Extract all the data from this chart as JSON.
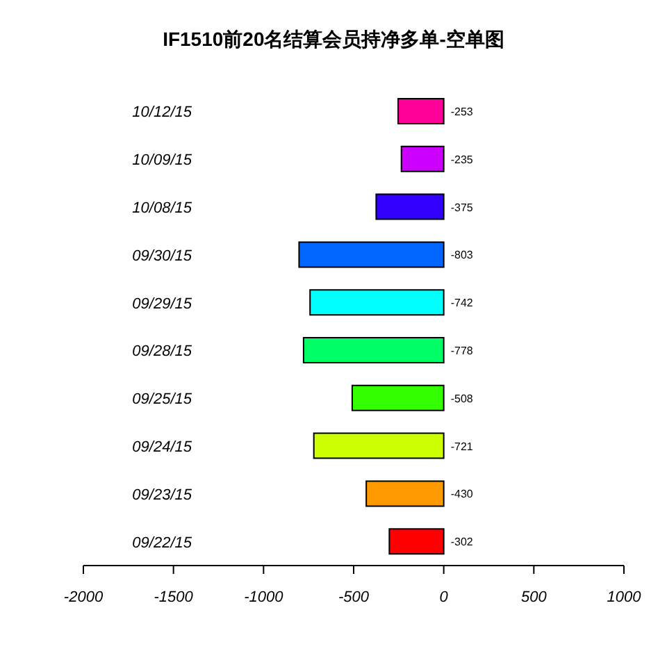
{
  "chart_data": {
    "type": "bar",
    "orientation": "horizontal",
    "title": "IF1510前20名结算会员持净多单-空单图",
    "categories": [
      "10/12/15",
      "10/09/15",
      "10/08/15",
      "09/30/15",
      "09/29/15",
      "09/28/15",
      "09/25/15",
      "09/24/15",
      "09/23/15",
      "09/22/15"
    ],
    "values": [
      -253,
      -235,
      -375,
      -803,
      -742,
      -778,
      -508,
      -721,
      -430,
      -302
    ],
    "colors": [
      "#ff0099",
      "#cc00ff",
      "#3300ff",
      "#0066ff",
      "#00ffff",
      "#00ff66",
      "#33ff00",
      "#ccff00",
      "#ff9900",
      "#ff0000"
    ],
    "xlim": [
      -2000,
      1000
    ],
    "xticks": [
      -2000,
      -1500,
      -1000,
      -500,
      0,
      500,
      1000
    ],
    "data_labels": true,
    "grid": false,
    "legend": false
  }
}
